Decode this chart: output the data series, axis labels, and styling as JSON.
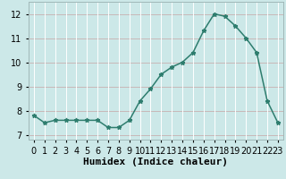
{
  "x": [
    0,
    1,
    2,
    3,
    4,
    5,
    6,
    7,
    8,
    9,
    10,
    11,
    12,
    13,
    14,
    15,
    16,
    17,
    18,
    19,
    20,
    21,
    22,
    23
  ],
  "y": [
    7.8,
    7.5,
    7.6,
    7.6,
    7.6,
    7.6,
    7.6,
    7.3,
    7.3,
    7.6,
    8.4,
    8.9,
    9.5,
    9.8,
    10.0,
    10.4,
    11.3,
    12.0,
    11.9,
    11.5,
    11.0,
    10.4,
    8.4,
    7.5
  ],
  "xlim": [
    -0.5,
    23.5
  ],
  "ylim": [
    6.8,
    12.5
  ],
  "yticks": [
    7,
    8,
    9,
    10,
    11,
    12
  ],
  "xtick_labels": [
    "0",
    "1",
    "2",
    "3",
    "4",
    "5",
    "6",
    "7",
    "8",
    "9",
    "10",
    "11",
    "12",
    "13",
    "14",
    "15",
    "16",
    "17",
    "18",
    "19",
    "20",
    "21",
    "22",
    "23"
  ],
  "xlabel": "Humidex (Indice chaleur)",
  "line_color": "#2e7d6e",
  "marker": "*",
  "marker_size": 3.5,
  "background_color": "#cce8e8",
  "grid_h_color": "#c8b8b8",
  "grid_v_color": "#ffffff",
  "xlabel_fontsize": 8,
  "tick_fontsize": 7
}
